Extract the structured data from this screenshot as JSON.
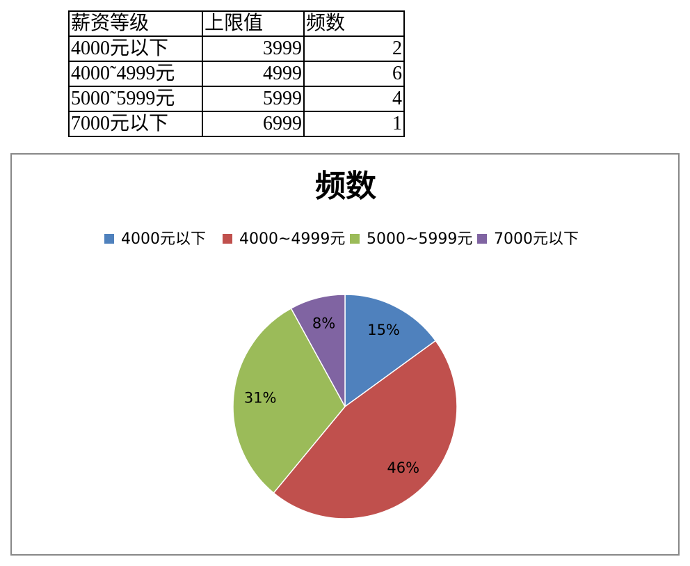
{
  "table": {
    "header": [
      "薪资等级",
      "上限值",
      "频数"
    ],
    "rows": [
      [
        "4000元以下",
        3999,
        2
      ],
      [
        "4000˜4999元",
        4999,
        6
      ],
      [
        "5000˜5999元",
        5999,
        4
      ],
      [
        "7000元以下",
        6999,
        1
      ]
    ]
  },
  "chart_data": {
    "type": "pie",
    "title": "频数",
    "categories": [
      "4000元以下",
      "4000~4999元",
      "5000~5999元",
      "7000元以下"
    ],
    "values": [
      15,
      46,
      31,
      8
    ],
    "value_labels": [
      "15%",
      "46%",
      "31%",
      "8%"
    ],
    "colors": [
      "#4f81bd",
      "#c0504d",
      "#9bbb59",
      "#8064a2"
    ],
    "legend": "top"
  }
}
